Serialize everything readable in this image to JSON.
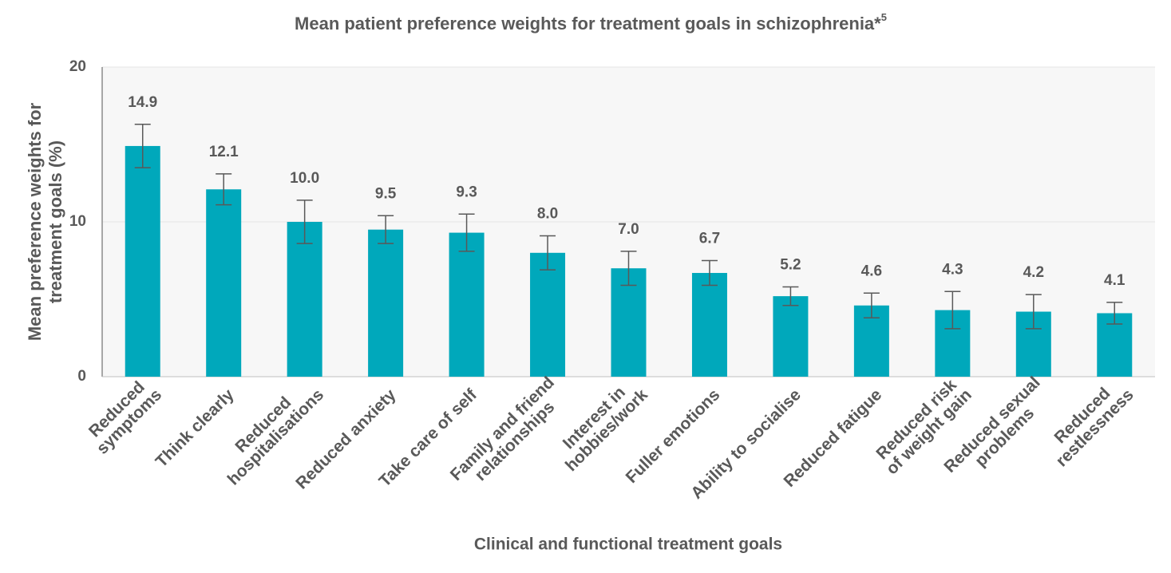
{
  "chart_data": {
    "type": "bar",
    "title": "Mean patient preference weights for treatment goals in schizophrenia*",
    "title_superscript": "5",
    "ylabel": [
      "Mean preference weights for",
      "treatment goals (%)"
    ],
    "xlabel": "Clinical and functional treatment goals",
    "categories": [
      [
        "Reduced",
        "symptoms"
      ],
      [
        "Think clearly"
      ],
      [
        "Reduced",
        "hospitalisations"
      ],
      [
        "Reduced anxiety"
      ],
      [
        "Take care of self"
      ],
      [
        "Family and friend",
        "relationships"
      ],
      [
        "Interest in",
        "hobbies/work"
      ],
      [
        "Fuller emotions"
      ],
      [
        "Ability to socialise"
      ],
      [
        "Reduced fatigue"
      ],
      [
        "Reduced risk",
        "of weight gain"
      ],
      [
        "Reduced sexual",
        "problems"
      ],
      [
        "Reduced",
        "restlessness"
      ]
    ],
    "values": [
      14.9,
      12.1,
      10.0,
      9.5,
      9.3,
      8.0,
      7.0,
      6.7,
      5.2,
      4.6,
      4.3,
      4.2,
      4.1
    ],
    "value_labels": [
      "14.9",
      "12.1",
      "10.0",
      "9.5",
      "9.3",
      "8.0",
      "7.0",
      "6.7",
      "5.2",
      "4.6",
      "4.3",
      "4.2",
      "4.1"
    ],
    "errors": [
      1.4,
      1.0,
      1.4,
      0.9,
      1.2,
      1.1,
      1.1,
      0.8,
      0.6,
      0.8,
      1.2,
      1.1,
      0.7
    ],
    "color": "#00a8bb",
    "error_color": "#595959",
    "ylim": [
      0,
      20
    ],
    "yticks": [
      0,
      10,
      20
    ],
    "grid": true
  }
}
